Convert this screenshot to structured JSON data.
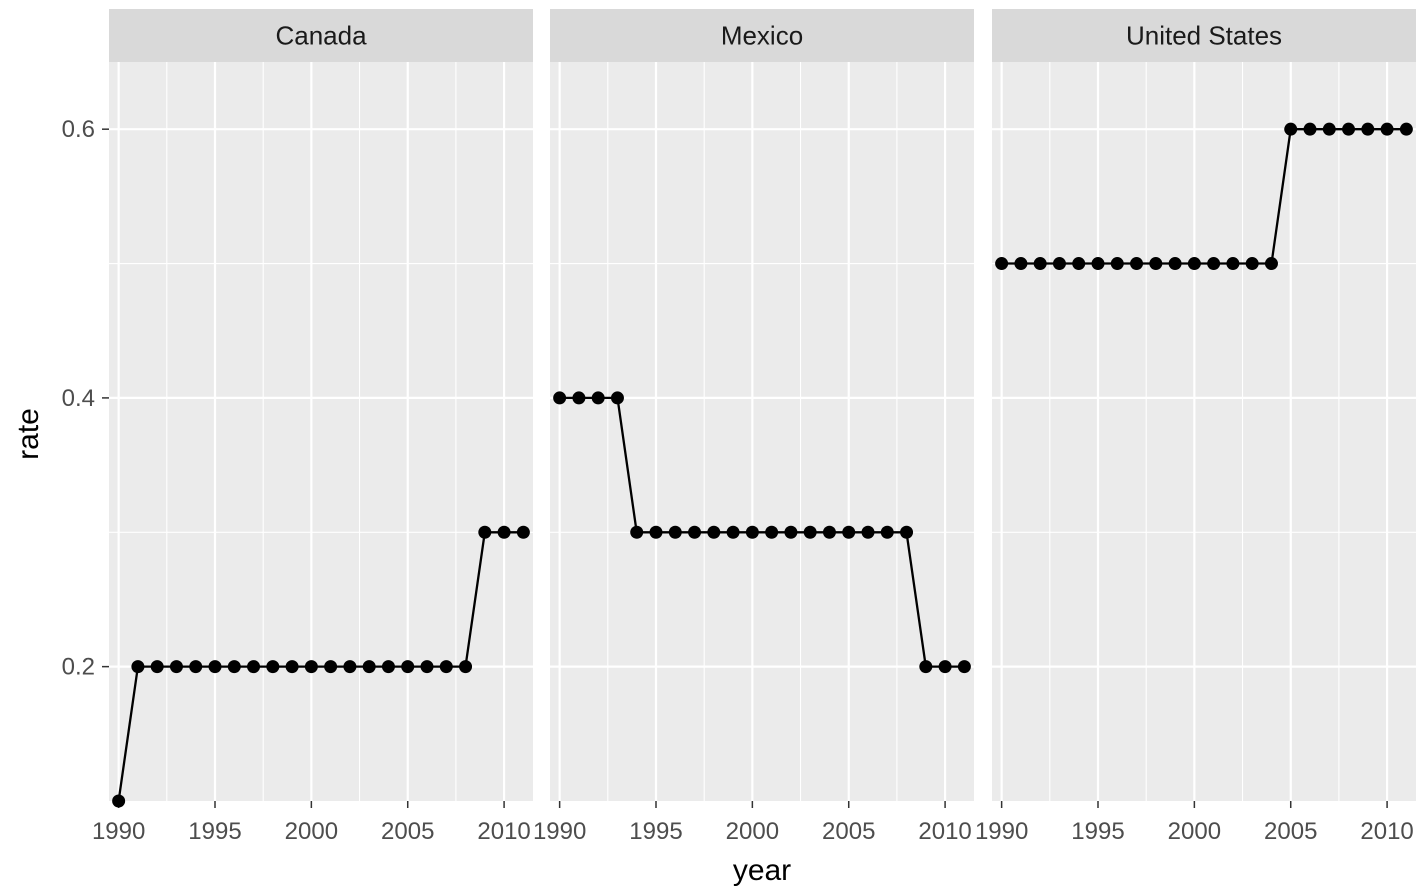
{
  "chart_data": {
    "type": "line",
    "facet_by": "country",
    "xlabel": "year",
    "ylabel": "rate",
    "xlim": [
      1989.5,
      2011.5
    ],
    "ylim": [
      0.1,
      0.65
    ],
    "x_ticks": [
      1990,
      1995,
      2000,
      2005,
      2010
    ],
    "y_ticks": [
      0.2,
      0.4,
      0.6
    ],
    "y_tick_labels": [
      "0.2",
      "0.4",
      "0.6"
    ],
    "grid": true,
    "x": [
      1990,
      1991,
      1992,
      1993,
      1994,
      1995,
      1996,
      1997,
      1998,
      1999,
      2000,
      2001,
      2002,
      2003,
      2004,
      2005,
      2006,
      2007,
      2008,
      2009,
      2010,
      2011
    ],
    "panels": [
      {
        "name": "Canada",
        "values": [
          0.1,
          0.2,
          0.2,
          0.2,
          0.2,
          0.2,
          0.2,
          0.2,
          0.2,
          0.2,
          0.2,
          0.2,
          0.2,
          0.2,
          0.2,
          0.2,
          0.2,
          0.2,
          0.2,
          0.3,
          0.3,
          0.3
        ]
      },
      {
        "name": "Mexico",
        "values": [
          0.4,
          0.4,
          0.4,
          0.4,
          0.3,
          0.3,
          0.3,
          0.3,
          0.3,
          0.3,
          0.3,
          0.3,
          0.3,
          0.3,
          0.3,
          0.3,
          0.3,
          0.3,
          0.3,
          0.2,
          0.2,
          0.2
        ]
      },
      {
        "name": "United States",
        "values": [
          0.5,
          0.5,
          0.5,
          0.5,
          0.5,
          0.5,
          0.5,
          0.5,
          0.5,
          0.5,
          0.5,
          0.5,
          0.5,
          0.5,
          0.5,
          0.6,
          0.6,
          0.6,
          0.6,
          0.6,
          0.6,
          0.6
        ]
      }
    ]
  }
}
